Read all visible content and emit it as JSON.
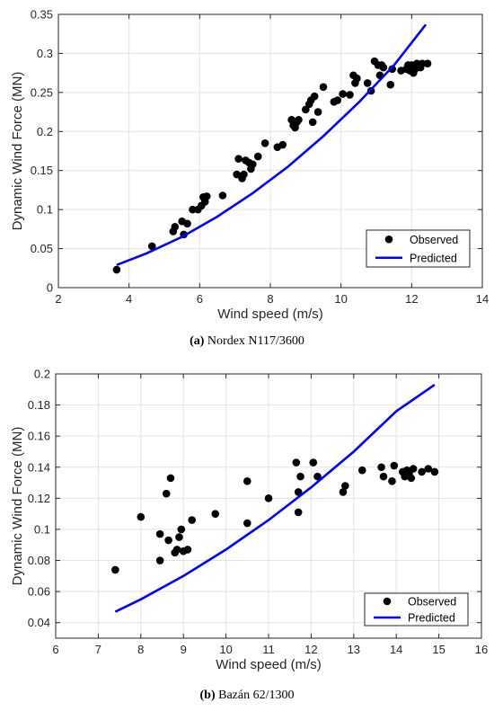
{
  "captions": [
    {
      "letter": "(a)",
      "text": " Nordex N117/3600"
    },
    {
      "letter": "(b)",
      "text": " Bazán 62/1300"
    }
  ],
  "chart_data": [
    {
      "type": "scatter",
      "xlabel": "Wind speed (m/s)",
      "ylabel": "Dynamic Wind Force (MN)",
      "xlim": [
        2,
        14
      ],
      "ylim": [
        0,
        0.35
      ],
      "xticks": [
        "2",
        "4",
        "6",
        "8",
        "10",
        "12",
        "14"
      ],
      "yticks": [
        "0",
        "0.05",
        "0.1",
        "0.15",
        "0.2",
        "0.25",
        "0.3",
        "0.35"
      ],
      "grid": true,
      "legend_position": "bottom-right",
      "series": [
        {
          "name": "Observed",
          "kind": "scatter",
          "color": "#000000",
          "points": [
            [
              3.65,
              0.023
            ],
            [
              4.65,
              0.053
            ],
            [
              5.25,
              0.072
            ],
            [
              5.3,
              0.078
            ],
            [
              5.5,
              0.085
            ],
            [
              5.55,
              0.068
            ],
            [
              5.65,
              0.082
            ],
            [
              5.8,
              0.1
            ],
            [
              5.95,
              0.1
            ],
            [
              6.05,
              0.105
            ],
            [
              6.1,
              0.116
            ],
            [
              6.15,
              0.11
            ],
            [
              6.2,
              0.117
            ],
            [
              6.65,
              0.118
            ],
            [
              7.05,
              0.145
            ],
            [
              7.1,
              0.165
            ],
            [
              7.2,
              0.14
            ],
            [
              7.25,
              0.145
            ],
            [
              7.3,
              0.163
            ],
            [
              7.4,
              0.16
            ],
            [
              7.45,
              0.152
            ],
            [
              7.5,
              0.158
            ],
            [
              7.65,
              0.168
            ],
            [
              7.85,
              0.185
            ],
            [
              8.2,
              0.18
            ],
            [
              8.35,
              0.183
            ],
            [
              8.6,
              0.215
            ],
            [
              8.65,
              0.208
            ],
            [
              8.7,
              0.205
            ],
            [
              8.75,
              0.212
            ],
            [
              8.8,
              0.215
            ],
            [
              9.0,
              0.228
            ],
            [
              9.1,
              0.235
            ],
            [
              9.15,
              0.24
            ],
            [
              9.2,
              0.212
            ],
            [
              9.25,
              0.245
            ],
            [
              9.35,
              0.225
            ],
            [
              9.5,
              0.257
            ],
            [
              9.8,
              0.238
            ],
            [
              9.9,
              0.24
            ],
            [
              10.05,
              0.248
            ],
            [
              10.25,
              0.247
            ],
            [
              10.35,
              0.272
            ],
            [
              10.4,
              0.262
            ],
            [
              10.45,
              0.268
            ],
            [
              10.75,
              0.262
            ],
            [
              10.85,
              0.252
            ],
            [
              10.95,
              0.29
            ],
            [
              11.05,
              0.285
            ],
            [
              11.1,
              0.272
            ],
            [
              11.15,
              0.285
            ],
            [
              11.2,
              0.282
            ],
            [
              11.4,
              0.26
            ],
            [
              11.45,
              0.28
            ],
            [
              11.7,
              0.278
            ],
            [
              11.85,
              0.28
            ],
            [
              11.9,
              0.285
            ],
            [
              11.95,
              0.278
            ],
            [
              12.0,
              0.285
            ],
            [
              12.05,
              0.275
            ],
            [
              12.1,
              0.28
            ],
            [
              12.15,
              0.287
            ],
            [
              12.2,
              0.285
            ],
            [
              12.25,
              0.282
            ],
            [
              12.3,
              0.287
            ],
            [
              12.45,
              0.287
            ]
          ]
        },
        {
          "name": "Predicted",
          "kind": "line",
          "color": "#0000ff",
          "points": [
            [
              3.65,
              0.029
            ],
            [
              4.5,
              0.044
            ],
            [
              5.5,
              0.065
            ],
            [
              6.5,
              0.091
            ],
            [
              7.5,
              0.121
            ],
            [
              8.5,
              0.155
            ],
            [
              9.5,
              0.194
            ],
            [
              10.5,
              0.237
            ],
            [
              11.5,
              0.285
            ],
            [
              12.4,
              0.337
            ]
          ]
        }
      ]
    },
    {
      "type": "scatter",
      "xlabel": "Wind speed (m/s)",
      "ylabel": "Dynamic Wind Force (MN)",
      "xlim": [
        6,
        16
      ],
      "ylim": [
        0.03,
        0.2
      ],
      "xticks": [
        "6",
        "7",
        "8",
        "9",
        "10",
        "11",
        "12",
        "13",
        "14",
        "15",
        "16"
      ],
      "yticks": [
        "0.04",
        "0.06",
        "0.08",
        "0.1",
        "0.12",
        "0.14",
        "0.16",
        "0.18",
        "0.2"
      ],
      "grid": true,
      "legend_position": "bottom-right",
      "series": [
        {
          "name": "Observed",
          "kind": "scatter",
          "color": "#000000",
          "points": [
            [
              7.4,
              0.074
            ],
            [
              8.0,
              0.108
            ],
            [
              8.45,
              0.097
            ],
            [
              8.45,
              0.08
            ],
            [
              8.6,
              0.123
            ],
            [
              8.65,
              0.093
            ],
            [
              8.7,
              0.133
            ],
            [
              8.8,
              0.085
            ],
            [
              8.85,
              0.087
            ],
            [
              8.9,
              0.095
            ],
            [
              8.95,
              0.1
            ],
            [
              9.0,
              0.086
            ],
            [
              9.1,
              0.087
            ],
            [
              9.2,
              0.106
            ],
            [
              9.75,
              0.11
            ],
            [
              10.5,
              0.131
            ],
            [
              10.5,
              0.104
            ],
            [
              11.0,
              0.12
            ],
            [
              11.65,
              0.143
            ],
            [
              11.7,
              0.124
            ],
            [
              11.7,
              0.111
            ],
            [
              11.75,
              0.134
            ],
            [
              12.05,
              0.143
            ],
            [
              12.15,
              0.134
            ],
            [
              12.75,
              0.124
            ],
            [
              12.8,
              0.128
            ],
            [
              13.2,
              0.138
            ],
            [
              13.65,
              0.14
            ],
            [
              13.7,
              0.134
            ],
            [
              13.9,
              0.131
            ],
            [
              13.95,
              0.141
            ],
            [
              14.15,
              0.137
            ],
            [
              14.2,
              0.134
            ],
            [
              14.25,
              0.138
            ],
            [
              14.3,
              0.136
            ],
            [
              14.35,
              0.133
            ],
            [
              14.4,
              0.139
            ],
            [
              14.6,
              0.137
            ],
            [
              14.75,
              0.139
            ],
            [
              14.9,
              0.137
            ]
          ]
        },
        {
          "name": "Predicted",
          "kind": "line",
          "color": "#0000ff",
          "points": [
            [
              7.4,
              0.047
            ],
            [
              8.0,
              0.055
            ],
            [
              9.0,
              0.07
            ],
            [
              10.0,
              0.087
            ],
            [
              11.0,
              0.106
            ],
            [
              12.0,
              0.127
            ],
            [
              13.0,
              0.15
            ],
            [
              14.0,
              0.176
            ],
            [
              14.9,
              0.193
            ]
          ]
        }
      ]
    }
  ]
}
